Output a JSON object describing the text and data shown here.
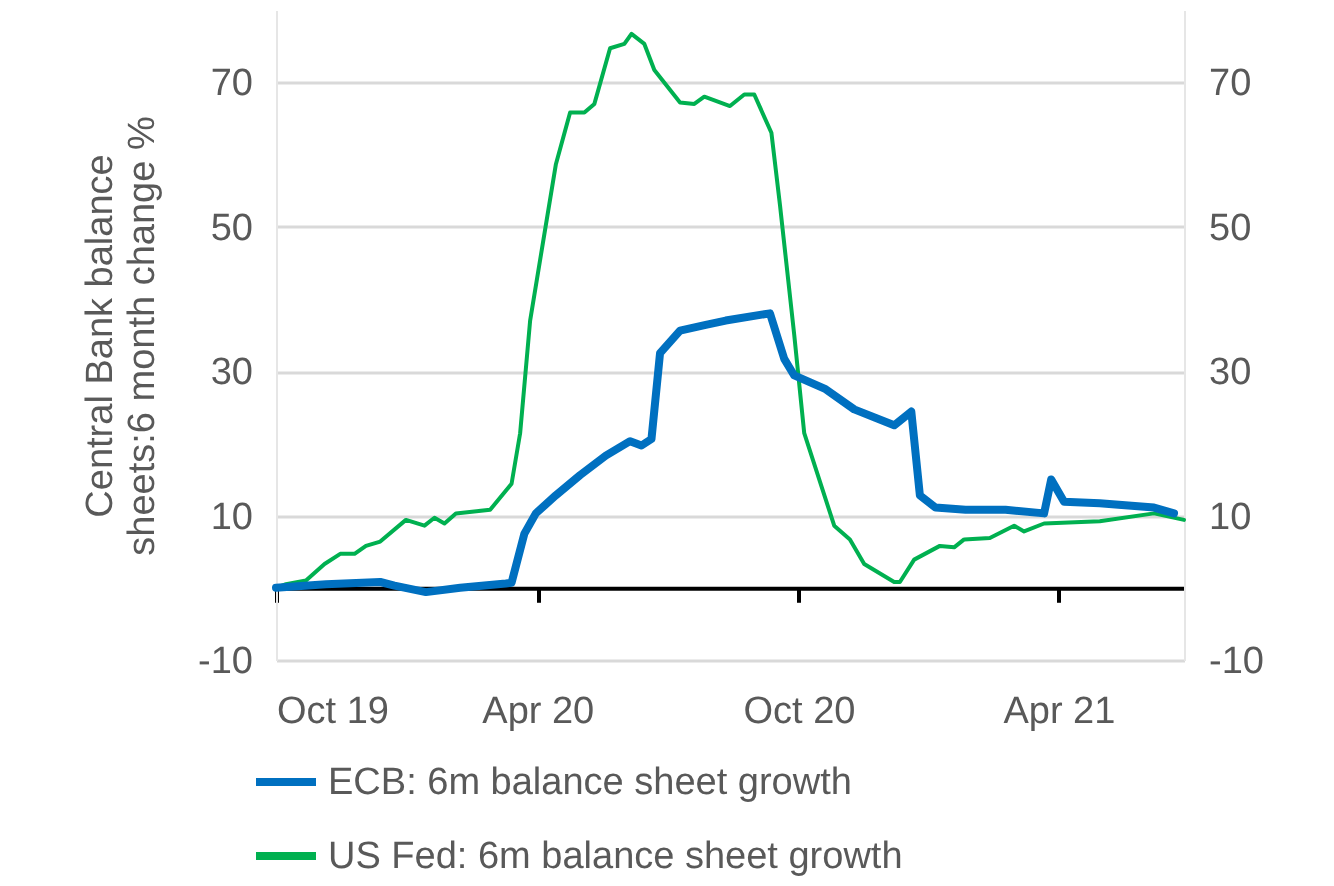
{
  "chart_data": {
    "type": "line",
    "ylabel": "Central Bank balance sheets:6 month change %",
    "xlim": [
      "2019-10-01",
      "2021-06-28"
    ],
    "xticks": [
      {
        "value": "2019-10-01",
        "label": "Oct 19"
      },
      {
        "value": "2020-04-01",
        "label": "Apr 20"
      },
      {
        "value": "2020-10-01",
        "label": "Oct 20"
      },
      {
        "value": "2021-04-01",
        "label": "Apr 21"
      }
    ],
    "ylim": [
      -10,
      80
    ],
    "yticks": [
      -10,
      10,
      30,
      50,
      70
    ],
    "y2lim": [
      -10,
      80
    ],
    "y2ticks": [
      -10,
      10,
      30,
      50,
      70
    ],
    "grid": "y",
    "legend": "bottom",
    "series": [
      {
        "name": "ECB: 6m balance sheet growth",
        "color": "#0070c0",
        "x": [
          "2019-10-01",
          "2019-11-05",
          "2019-12-13",
          "2019-12-23",
          "2020-01-14",
          "2020-02-07",
          "2020-03-10",
          "2020-03-14",
          "2020-03-23",
          "2020-03-31",
          "2020-04-14",
          "2020-05-01",
          "2020-05-19",
          "2020-06-05",
          "2020-06-13",
          "2020-06-20",
          "2020-06-26",
          "2020-07-10",
          "2020-07-28",
          "2020-08-11",
          "2020-09-11",
          "2020-09-21",
          "2020-09-28",
          "2020-10-20",
          "2020-11-09",
          "2020-12-07",
          "2020-12-19",
          "2020-12-25",
          "2021-01-05",
          "2021-01-26",
          "2021-02-23",
          "2021-03-22",
          "2021-03-27",
          "2021-04-05",
          "2021-04-30",
          "2021-06-07",
          "2021-06-21"
        ],
        "values": [
          0,
          0.5,
          0.8,
          0.3,
          -0.6,
          0,
          0.6,
          0.7,
          7.5,
          10.3,
          12.8,
          15.6,
          18.3,
          20.3,
          19.7,
          20.6,
          32.5,
          35.6,
          36.4,
          37,
          38,
          31.7,
          29.4,
          27.5,
          24.7,
          22.5,
          24.4,
          12.8,
          11.1,
          10.8,
          10.8,
          10.3,
          15,
          11.9,
          11.7,
          11.1,
          10.3
        ]
      },
      {
        "name": "US Fed: 6m balance sheet growth",
        "color": "#00b050",
        "x": [
          "2019-10-01",
          "2019-10-08",
          "2019-10-22",
          "2019-11-04",
          "2019-11-15",
          "2019-11-25",
          "2019-12-03",
          "2019-12-13",
          "2019-12-31",
          "2020-01-13",
          "2020-01-20",
          "2020-01-27",
          "2020-02-04",
          "2020-02-28",
          "2020-03-14",
          "2020-03-20",
          "2020-03-27",
          "2020-04-06",
          "2020-04-14",
          "2020-04-24",
          "2020-05-04",
          "2020-05-11",
          "2020-05-22",
          "2020-06-01",
          "2020-06-06",
          "2020-06-15",
          "2020-06-22",
          "2020-07-10",
          "2020-07-20",
          "2020-07-27",
          "2020-08-14",
          "2020-08-24",
          "2020-08-31",
          "2020-09-12",
          "2020-09-18",
          "2020-09-28",
          "2020-10-05",
          "2020-10-26",
          "2020-11-06",
          "2020-11-16",
          "2020-12-07",
          "2020-12-11",
          "2020-12-21",
          "2021-01-08",
          "2021-01-18",
          "2021-01-25",
          "2021-02-12",
          "2021-03-01",
          "2021-03-08",
          "2021-03-22",
          "2021-04-30",
          "2021-06-07",
          "2021-06-28"
        ],
        "values": [
          0,
          0.5,
          1,
          3.3,
          4.7,
          4.7,
          5.8,
          6.4,
          9.4,
          8.6,
          9.7,
          8.9,
          10.3,
          10.8,
          14.4,
          21.4,
          37,
          49,
          58.6,
          65.8,
          65.8,
          67,
          74.7,
          75.3,
          76.7,
          75.3,
          71.7,
          67.2,
          67,
          68,
          66.7,
          68.3,
          68.3,
          63,
          53,
          35,
          21.4,
          8.6,
          6.7,
          3.3,
          0.8,
          0.8,
          3.9,
          5.8,
          5.6,
          6.7,
          6.9,
          8.6,
          7.8,
          8.9,
          9.2,
          10.3,
          9.4
        ]
      }
    ]
  }
}
